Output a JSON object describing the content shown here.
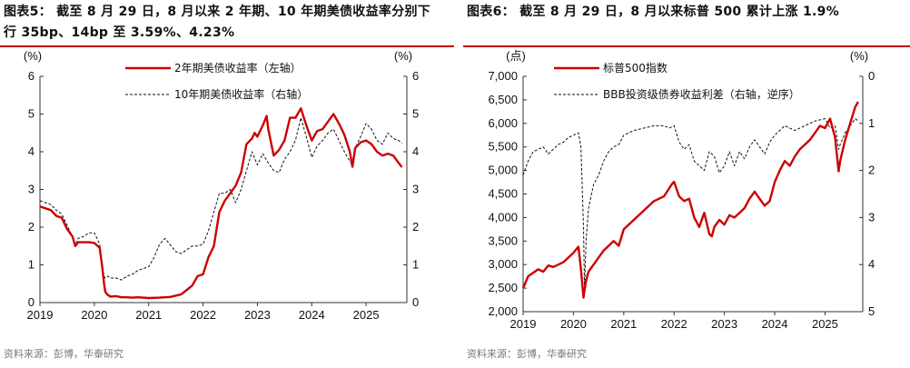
{
  "chart_data": [
    {
      "type": "line",
      "title_line1": "图表5： 截至 8 月 29 日，8 月以来 2 年期、10 年期美债收益率分别下",
      "title_line2": "行 35bp、14bp 至 3.59%、4.23%",
      "left_unit": "(%)",
      "right_unit": "(%)",
      "x_ticks": [
        "2019",
        "2020",
        "2021",
        "2022",
        "2023",
        "2024",
        "2025"
      ],
      "y_left_ticks": [
        "0",
        "1",
        "2",
        "3",
        "4",
        "5",
        "6"
      ],
      "y_right_ticks": [
        "0",
        "1",
        "2",
        "3",
        "4",
        "5",
        "6"
      ],
      "ylim_left": [
        0,
        6
      ],
      "ylim_right": [
        0,
        6
      ],
      "xlim": [
        2019.0,
        2025.75
      ],
      "source": "资料来源：彭博，华泰研究",
      "series": [
        {
          "name": "2年期美债收益率（左轴）",
          "axis": "left",
          "color": "#cc0000",
          "style": "solid",
          "x": [
            2019.0,
            2019.1,
            2019.2,
            2019.3,
            2019.4,
            2019.5,
            2019.6,
            2019.65,
            2019.7,
            2019.8,
            2019.9,
            2020.0,
            2020.1,
            2020.15,
            2020.18,
            2020.2,
            2020.22,
            2020.25,
            2020.3,
            2020.4,
            2020.5,
            2020.6,
            2020.7,
            2020.8,
            2020.9,
            2021.0,
            2021.2,
            2021.4,
            2021.6,
            2021.8,
            2021.9,
            2022.0,
            2022.1,
            2022.2,
            2022.3,
            2022.4,
            2022.5,
            2022.6,
            2022.7,
            2022.8,
            2022.9,
            2022.95,
            2023.0,
            2023.1,
            2023.17,
            2023.2,
            2023.3,
            2023.4,
            2023.5,
            2023.6,
            2023.7,
            2023.8,
            2023.9,
            2024.0,
            2024.1,
            2024.2,
            2024.3,
            2024.4,
            2024.5,
            2024.6,
            2024.7,
            2024.75,
            2024.8,
            2024.9,
            2025.0,
            2025.1,
            2025.2,
            2025.3,
            2025.4,
            2025.5,
            2025.6,
            2025.66
          ],
          "y": [
            2.55,
            2.5,
            2.45,
            2.3,
            2.25,
            1.95,
            1.75,
            1.5,
            1.6,
            1.6,
            1.6,
            1.58,
            1.45,
            0.9,
            0.5,
            0.3,
            0.25,
            0.2,
            0.16,
            0.17,
            0.14,
            0.14,
            0.13,
            0.14,
            0.13,
            0.12,
            0.13,
            0.15,
            0.22,
            0.45,
            0.7,
            0.75,
            1.2,
            1.5,
            2.4,
            2.7,
            2.9,
            3.1,
            3.45,
            4.2,
            4.35,
            4.5,
            4.4,
            4.7,
            4.95,
            4.6,
            3.9,
            4.05,
            4.3,
            4.9,
            4.9,
            5.15,
            4.7,
            4.3,
            4.55,
            4.6,
            4.8,
            5.0,
            4.75,
            4.45,
            4.0,
            3.6,
            4.1,
            4.25,
            4.3,
            4.2,
            4.0,
            3.9,
            3.95,
            3.9,
            3.7,
            3.59
          ]
        },
        {
          "name": "10年期美债收益率（右轴）",
          "axis": "right",
          "color": "#111111",
          "style": "dashed",
          "x": [
            2019.0,
            2019.1,
            2019.2,
            2019.3,
            2019.4,
            2019.5,
            2019.6,
            2019.65,
            2019.7,
            2019.8,
            2019.9,
            2020.0,
            2020.1,
            2020.15,
            2020.18,
            2020.2,
            2020.25,
            2020.3,
            2020.4,
            2020.5,
            2020.6,
            2020.7,
            2020.8,
            2020.9,
            2021.0,
            2021.1,
            2021.2,
            2021.3,
            2021.5,
            2021.6,
            2021.8,
            2021.9,
            2022.0,
            2022.1,
            2022.2,
            2022.3,
            2022.4,
            2022.5,
            2022.6,
            2022.7,
            2022.8,
            2022.9,
            2023.0,
            2023.1,
            2023.2,
            2023.3,
            2023.4,
            2023.5,
            2023.6,
            2023.7,
            2023.8,
            2023.9,
            2024.0,
            2024.1,
            2024.2,
            2024.3,
            2024.4,
            2024.5,
            2024.6,
            2024.7,
            2024.75,
            2024.8,
            2024.9,
            2025.0,
            2025.1,
            2025.2,
            2025.3,
            2025.4,
            2025.5,
            2025.6,
            2025.66
          ],
          "y": [
            2.7,
            2.65,
            2.6,
            2.45,
            2.35,
            2.05,
            1.75,
            1.5,
            1.7,
            1.75,
            1.85,
            1.85,
            1.55,
            0.9,
            0.7,
            0.65,
            0.7,
            0.65,
            0.65,
            0.6,
            0.7,
            0.75,
            0.85,
            0.9,
            0.95,
            1.2,
            1.55,
            1.7,
            1.35,
            1.3,
            1.5,
            1.5,
            1.55,
            1.9,
            2.4,
            2.9,
            2.9,
            3.0,
            2.65,
            3.0,
            3.5,
            4.0,
            3.65,
            3.95,
            3.7,
            3.5,
            3.45,
            3.8,
            4.0,
            4.3,
            4.9,
            4.4,
            3.85,
            4.15,
            4.3,
            4.5,
            4.6,
            4.3,
            4.0,
            3.75,
            3.65,
            4.1,
            4.4,
            4.75,
            4.6,
            4.3,
            4.2,
            4.5,
            4.35,
            4.3,
            4.23
          ]
        }
      ]
    },
    {
      "type": "line",
      "title_line1": "图表6： 截至 8 月 29 日，8 月以来标普 500 累计上涨 1.9%",
      "left_unit": "(点)",
      "right_unit": "(%)",
      "x_ticks": [
        "2019",
        "2020",
        "2021",
        "2022",
        "2023",
        "2024",
        "2025"
      ],
      "y_left_ticks": [
        "2,000",
        "2,500",
        "3,000",
        "3,500",
        "4,000",
        "4,500",
        "5,000",
        "5,500",
        "6,000",
        "6,500",
        "7,000"
      ],
      "y_right_ticks": [
        "5",
        "4",
        "3",
        "2",
        "1",
        "0"
      ],
      "ylim_left": [
        2000,
        7000
      ],
      "ylim_right": [
        5,
        0
      ],
      "right_axis_inverted": true,
      "xlim": [
        2019.0,
        2025.75
      ],
      "source": "资料来源：彭博，华泰研究",
      "series": [
        {
          "name": "标普500指数",
          "axis": "left",
          "color": "#cc0000",
          "style": "solid",
          "x": [
            2019.0,
            2019.1,
            2019.3,
            2019.4,
            2019.5,
            2019.6,
            2019.7,
            2019.8,
            2019.9,
            2020.0,
            2020.1,
            2020.15,
            2020.2,
            2020.22,
            2020.25,
            2020.3,
            2020.4,
            2020.5,
            2020.6,
            2020.7,
            2020.8,
            2020.9,
            2021.0,
            2021.2,
            2021.4,
            2021.6,
            2021.8,
            2021.95,
            2022.0,
            2022.1,
            2022.2,
            2022.3,
            2022.4,
            2022.45,
            2022.5,
            2022.6,
            2022.7,
            2022.75,
            2022.8,
            2022.9,
            2023.0,
            2023.1,
            2023.2,
            2023.3,
            2023.4,
            2023.5,
            2023.6,
            2023.7,
            2023.8,
            2023.9,
            2024.0,
            2024.1,
            2024.2,
            2024.3,
            2024.4,
            2024.5,
            2024.6,
            2024.7,
            2024.8,
            2024.9,
            2025.0,
            2025.1,
            2025.2,
            2025.27,
            2025.3,
            2025.4,
            2025.5,
            2025.6,
            2025.66
          ],
          "y": [
            2500,
            2750,
            2900,
            2850,
            2980,
            2950,
            3000,
            3050,
            3150,
            3250,
            3380,
            2900,
            2300,
            2450,
            2650,
            2850,
            3000,
            3150,
            3300,
            3400,
            3500,
            3400,
            3750,
            3950,
            4150,
            4350,
            4450,
            4700,
            4760,
            4450,
            4350,
            4400,
            4000,
            3900,
            3800,
            4100,
            3650,
            3600,
            3800,
            3950,
            3850,
            4050,
            4000,
            4100,
            4200,
            4400,
            4550,
            4400,
            4250,
            4350,
            4750,
            5000,
            5200,
            5100,
            5300,
            5450,
            5550,
            5650,
            5800,
            5950,
            5900,
            6100,
            5700,
            4980,
            5200,
            5650,
            6000,
            6350,
            6460
          ]
        },
        {
          "name": "BBB投资级债券收益利差（右轴，逆序）",
          "axis": "right",
          "color": "#111111",
          "style": "dashed",
          "x": [
            2019.0,
            2019.1,
            2019.2,
            2019.3,
            2019.4,
            2019.5,
            2019.6,
            2019.7,
            2019.8,
            2019.9,
            2020.0,
            2020.1,
            2020.15,
            2020.2,
            2020.22,
            2020.25,
            2020.3,
            2020.4,
            2020.5,
            2020.6,
            2020.7,
            2020.8,
            2020.9,
            2021.0,
            2021.2,
            2021.4,
            2021.6,
            2021.8,
            2021.9,
            2022.0,
            2022.1,
            2022.2,
            2022.3,
            2022.4,
            2022.5,
            2022.6,
            2022.7,
            2022.8,
            2022.9,
            2023.0,
            2023.1,
            2023.2,
            2023.3,
            2023.4,
            2023.5,
            2023.6,
            2023.7,
            2023.8,
            2023.9,
            2024.0,
            2024.2,
            2024.4,
            2024.6,
            2024.8,
            2025.0,
            2025.1,
            2025.2,
            2025.27,
            2025.3,
            2025.4,
            2025.5,
            2025.6,
            2025.66
          ],
          "y": [
            2.1,
            1.8,
            1.6,
            1.55,
            1.5,
            1.65,
            1.55,
            1.45,
            1.4,
            1.3,
            1.25,
            1.2,
            1.5,
            3.2,
            4.55,
            3.5,
            2.8,
            2.3,
            2.1,
            1.8,
            1.6,
            1.5,
            1.45,
            1.25,
            1.15,
            1.1,
            1.05,
            1.05,
            1.1,
            1.05,
            1.4,
            1.55,
            1.45,
            1.8,
            1.9,
            2.0,
            1.6,
            1.7,
            2.05,
            1.9,
            1.6,
            1.9,
            1.6,
            1.75,
            1.5,
            1.35,
            1.5,
            1.65,
            1.4,
            1.25,
            1.05,
            1.15,
            1.05,
            0.95,
            0.9,
            1.1,
            1.05,
            1.55,
            1.45,
            1.2,
            1.05,
            0.9,
            0.95
          ]
        }
      ]
    }
  ]
}
